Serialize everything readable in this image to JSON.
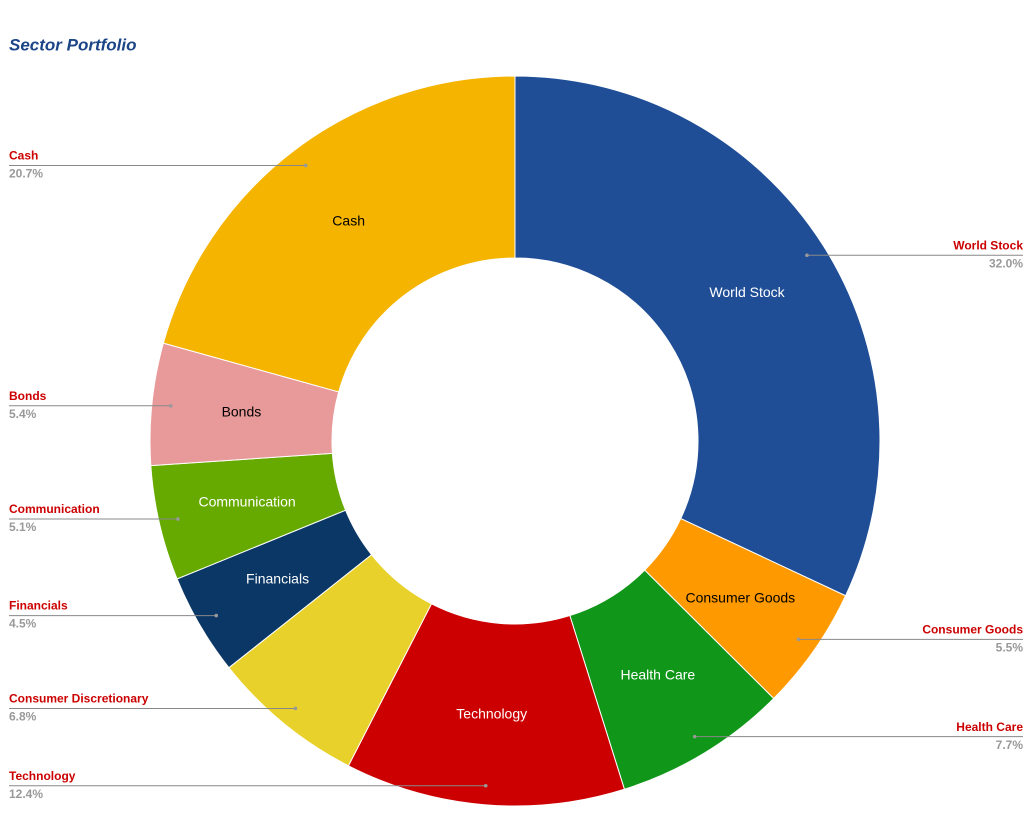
{
  "chart_data": {
    "type": "donut",
    "title": "Sector Portfolio",
    "series": [
      {
        "name": "World Stock",
        "color": "#1f4e96",
        "values": [
          32.0
        ],
        "value_labels": [
          "32.0%"
        ]
      },
      {
        "name": "Consumer Goods",
        "color": "#ff9900",
        "values": [
          5.5
        ],
        "value_labels": [
          "5.5%"
        ]
      },
      {
        "name": "Health Care",
        "color": "#109618",
        "values": [
          7.7
        ],
        "value_labels": [
          "7.7%"
        ]
      },
      {
        "name": "Technology",
        "color": "#cc0000",
        "values": [
          12.4
        ],
        "value_labels": [
          "12.4%"
        ]
      },
      {
        "name": "Consumer Discretionary",
        "color": "#e8d12a",
        "values": [
          6.8
        ],
        "value_labels": [
          "6.8%"
        ]
      },
      {
        "name": "Financials",
        "color": "#0b3766",
        "values": [
          4.5
        ],
        "value_labels": [
          "4.5%"
        ]
      },
      {
        "name": "Communication",
        "color": "#66aa00",
        "values": [
          5.1
        ],
        "value_labels": [
          "5.1%"
        ]
      },
      {
        "name": "Bonds",
        "color": "#e89a9a",
        "values": [
          5.4
        ],
        "value_labels": [
          "5.4%"
        ]
      },
      {
        "name": "Cash",
        "color": "#f4b400",
        "values": [
          20.7
        ],
        "value_labels": [
          "20.7%"
        ]
      }
    ]
  }
}
